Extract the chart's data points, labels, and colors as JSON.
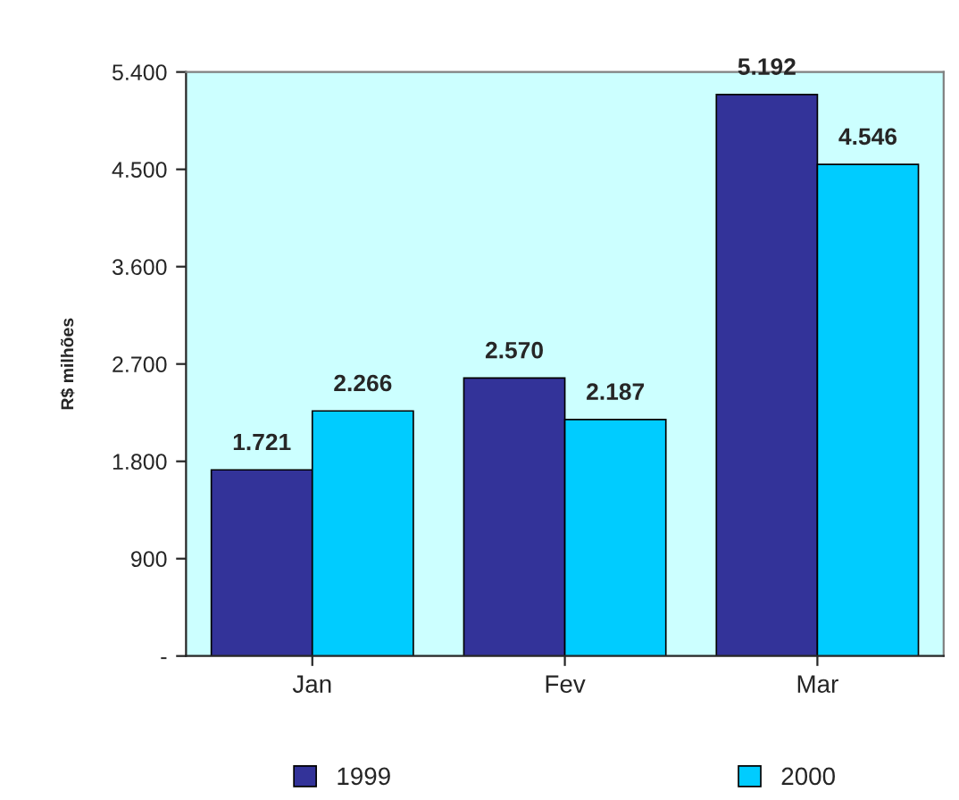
{
  "chart_data": {
    "type": "bar",
    "ylabel": "R$ milhões",
    "categories": [
      "Jan",
      "Fev",
      "Mar"
    ],
    "series": [
      {
        "name": "1999",
        "color": "#333399",
        "values": [
          1721,
          2570,
          5192
        ],
        "value_labels": [
          "1.721",
          "2.570",
          "5.192"
        ]
      },
      {
        "name": "2000",
        "color": "#00ccff",
        "values": [
          2266,
          2187,
          4546
        ],
        "value_labels": [
          "2.266",
          "2.187",
          "4.546"
        ]
      }
    ],
    "ylim": [
      0,
      5400
    ],
    "yticks": [
      {
        "value": 0,
        "label": "-"
      },
      {
        "value": 900,
        "label": "900"
      },
      {
        "value": 1800,
        "label": "1.800"
      },
      {
        "value": 2700,
        "label": "2.700"
      },
      {
        "value": 3600,
        "label": "3.600"
      },
      {
        "value": 4500,
        "label": "4.500"
      },
      {
        "value": 5400,
        "label": "5.400"
      }
    ],
    "grid": false,
    "legend": "bottom"
  }
}
